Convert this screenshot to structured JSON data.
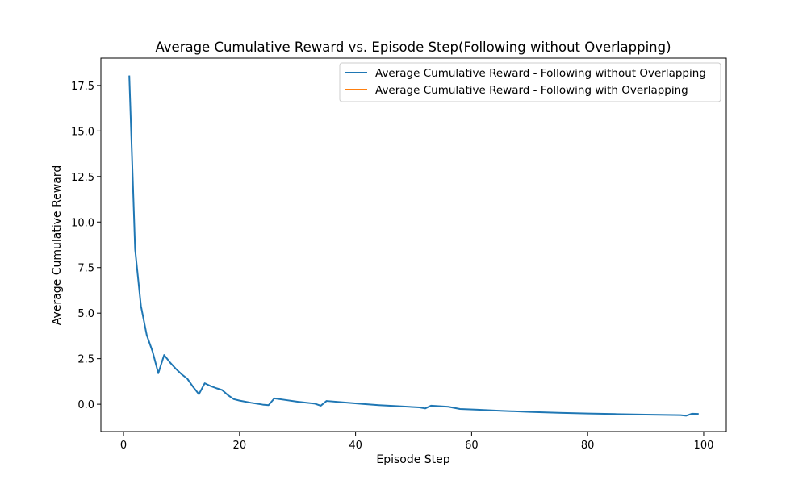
{
  "chart_data": {
    "type": "line",
    "title": "Average Cumulative Reward vs. Episode Step(Following without Overlapping)",
    "xlabel": "Episode Step",
    "ylabel": "Average Cumulative Reward",
    "xlim": [
      -3.9,
      103.9
    ],
    "ylim": [
      -1.5,
      19.0
    ],
    "xticks": [
      0,
      20,
      40,
      60,
      80,
      100
    ],
    "yticks": [
      0.0,
      2.5,
      5.0,
      7.5,
      10.0,
      12.5,
      15.0,
      17.5
    ],
    "xtick_labels": [
      "0",
      "20",
      "40",
      "60",
      "80",
      "100"
    ],
    "ytick_labels": [
      "0.0",
      "2.5",
      "5.0",
      "7.5",
      "10.0",
      "12.5",
      "15.0",
      "17.5"
    ],
    "grid": false,
    "legend_position": "top-right",
    "series": [
      {
        "name": "Average Cumulative Reward - Following without Overlapping",
        "color": "#1f77b4",
        "x": [
          1,
          2,
          3,
          4,
          5,
          6,
          7,
          8,
          9,
          10,
          11,
          12,
          13,
          14,
          15,
          16,
          17,
          18,
          19,
          20,
          22,
          24,
          25,
          26,
          28,
          30,
          33,
          34,
          35,
          38,
          41,
          44,
          47,
          51,
          52,
          53,
          56,
          58,
          61,
          65,
          70,
          75,
          80,
          85,
          90,
          96,
          97,
          98,
          99
        ],
        "y": [
          18.0,
          8.5,
          5.4,
          3.8,
          2.9,
          1.7,
          2.7,
          2.3,
          1.95,
          1.65,
          1.4,
          0.95,
          0.55,
          1.15,
          1.0,
          0.88,
          0.78,
          0.5,
          0.28,
          0.2,
          0.08,
          -0.02,
          -0.05,
          0.32,
          0.23,
          0.14,
          0.03,
          -0.08,
          0.18,
          0.1,
          0.02,
          -0.05,
          -0.1,
          -0.17,
          -0.23,
          -0.08,
          -0.14,
          -0.26,
          -0.3,
          -0.36,
          -0.42,
          -0.47,
          -0.51,
          -0.54,
          -0.57,
          -0.6,
          -0.63,
          -0.52,
          -0.53
        ]
      },
      {
        "name": "Average Cumulative Reward - Following with Overlapping",
        "color": "#ff7f0e",
        "x": [],
        "y": []
      }
    ]
  }
}
